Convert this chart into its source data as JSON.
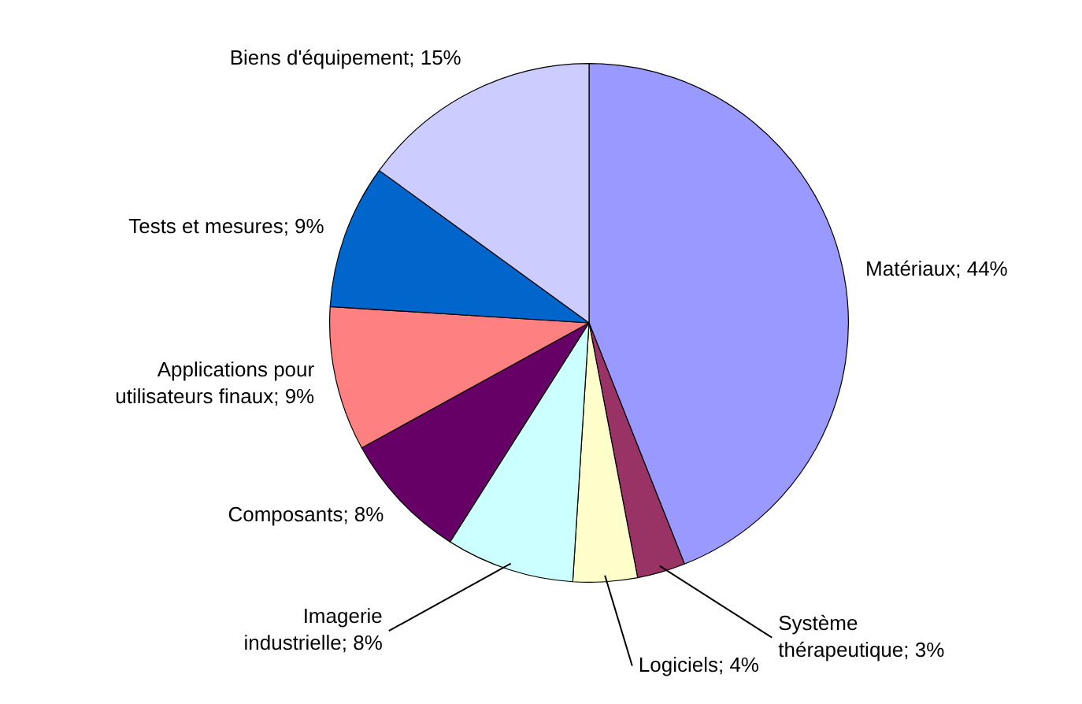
{
  "chart_data": {
    "type": "pie",
    "categories": [
      "Matériaux",
      "Système thérapeutique",
      "Logiciels",
      "Imagerie industrielle",
      "Composants",
      "Applications pour utilisateurs finaux",
      "Tests et mesures",
      "Biens d'équipement"
    ],
    "values": [
      44,
      3,
      4,
      8,
      8,
      9,
      9,
      15
    ],
    "colors": [
      "#9999ff",
      "#993366",
      "#ffffcc",
      "#ccffff",
      "#660066",
      "#ff8080",
      "#0066cc",
      "#ccccff"
    ],
    "value_labels": [
      "44%",
      "3%",
      "4%",
      "8%",
      "8%",
      "9%",
      "9%",
      "15%"
    ],
    "legend": false
  }
}
